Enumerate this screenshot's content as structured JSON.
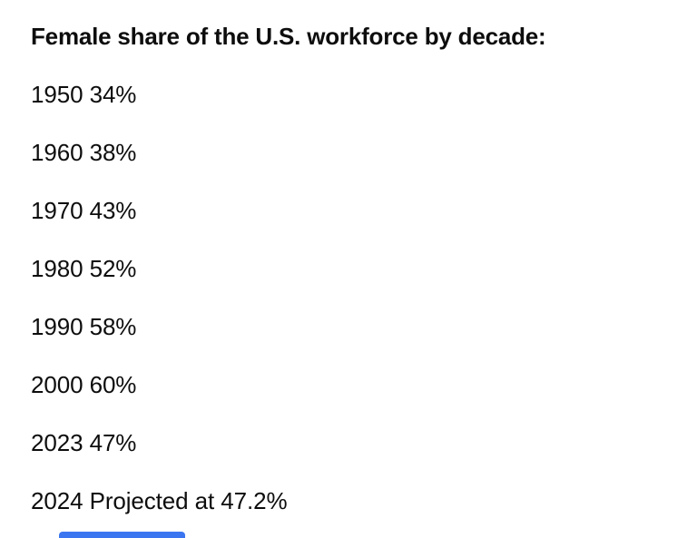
{
  "content": {
    "title": "Female share of the U.S. workforce by decade:",
    "rows": [
      {
        "year": "1950",
        "value": "34%"
      },
      {
        "year": "1960",
        "value": "38%"
      },
      {
        "year": "1970",
        "value": "43%"
      },
      {
        "year": "1980",
        "value": "52%"
      },
      {
        "year": "1990",
        "value": "58%"
      },
      {
        "year": "2000",
        "value": "60%"
      },
      {
        "year": "2023",
        "value": "47%"
      },
      {
        "year": "2024",
        "value": "Projected at 47.2%"
      }
    ]
  },
  "colors": {
    "text": "#0d0d0d",
    "background": "#ffffff",
    "accent_bar": "#3b76f0"
  }
}
